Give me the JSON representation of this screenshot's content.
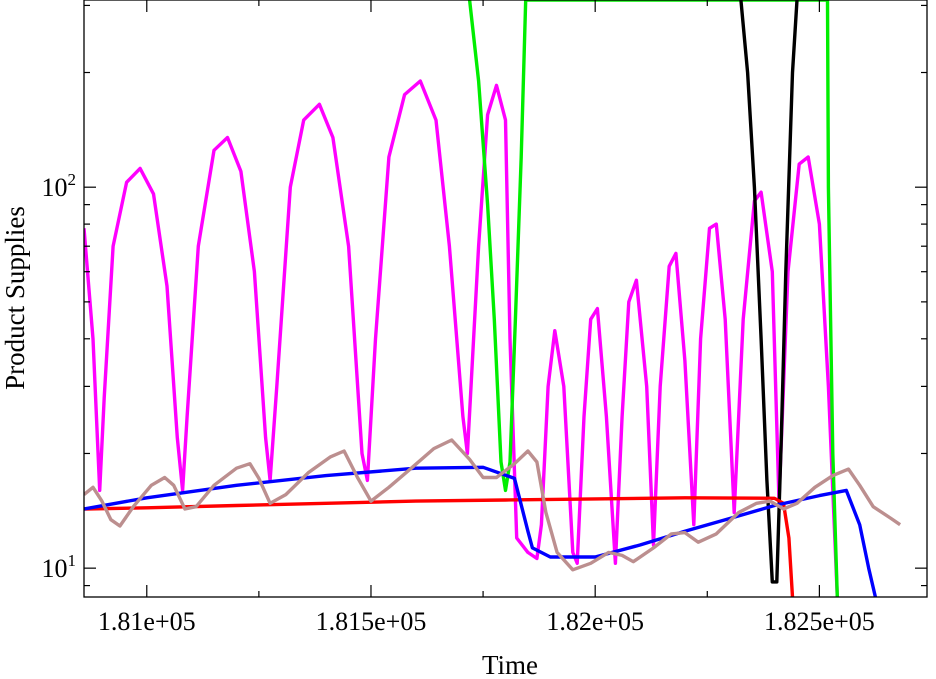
{
  "chart_data": {
    "type": "line",
    "xlabel": "Time",
    "ylabel": "Product Supplies",
    "xscale": "linear",
    "yscale": "log",
    "xlim": [
      180860,
      182740
    ],
    "ylim": [
      8.4,
      310
    ],
    "grid": false,
    "legend": "none",
    "x_ticks": [
      {
        "value": 181000,
        "label": "1.81e+05"
      },
      {
        "value": 181500,
        "label": "1.815e+05"
      },
      {
        "value": 182000,
        "label": "1.82e+05"
      },
      {
        "value": 182500,
        "label": "1.825e+05"
      }
    ],
    "y_ticks": [
      {
        "value": 10,
        "base": "10",
        "exp": "1"
      },
      {
        "value": 100,
        "base": "10",
        "exp": "2"
      }
    ],
    "series": [
      {
        "color": "#ff00ff",
        "points": [
          [
            180860,
            78
          ],
          [
            180880,
            40
          ],
          [
            180895,
            16
          ],
          [
            180905,
            28
          ],
          [
            180925,
            70
          ],
          [
            180955,
            103
          ],
          [
            180985,
            112
          ],
          [
            181015,
            96
          ],
          [
            181045,
            55
          ],
          [
            181068,
            22
          ],
          [
            181080,
            16
          ],
          [
            181090,
            25
          ],
          [
            181115,
            70
          ],
          [
            181150,
            125
          ],
          [
            181180,
            135
          ],
          [
            181210,
            110
          ],
          [
            181240,
            60
          ],
          [
            181265,
            22
          ],
          [
            181275,
            17
          ],
          [
            181290,
            30
          ],
          [
            181320,
            100
          ],
          [
            181350,
            150
          ],
          [
            181385,
            165
          ],
          [
            181415,
            135
          ],
          [
            181450,
            70
          ],
          [
            181480,
            20
          ],
          [
            181492,
            17
          ],
          [
            181510,
            40
          ],
          [
            181540,
            120
          ],
          [
            181575,
            175
          ],
          [
            181610,
            190
          ],
          [
            181645,
            150
          ],
          [
            181675,
            70
          ],
          [
            181705,
            25
          ],
          [
            181715,
            20
          ],
          [
            181740,
            70
          ],
          [
            181760,
            155
          ],
          [
            181780,
            185
          ],
          [
            181800,
            150
          ],
          [
            181810,
            40
          ],
          [
            181825,
            12
          ],
          [
            181850,
            11
          ],
          [
            181870,
            10.6
          ],
          [
            181880,
            13
          ],
          [
            181895,
            30
          ],
          [
            181910,
            42
          ],
          [
            181930,
            30
          ],
          [
            181950,
            11
          ],
          [
            181960,
            10.3
          ],
          [
            181975,
            25
          ],
          [
            181990,
            45
          ],
          [
            182005,
            48
          ],
          [
            182025,
            25
          ],
          [
            182045,
            10.3
          ],
          [
            182060,
            25
          ],
          [
            182075,
            50
          ],
          [
            182092,
            57
          ],
          [
            182115,
            30
          ],
          [
            182130,
            11.5
          ],
          [
            182145,
            30
          ],
          [
            182165,
            62
          ],
          [
            182180,
            67
          ],
          [
            182200,
            35
          ],
          [
            182220,
            13
          ],
          [
            182235,
            40
          ],
          [
            182255,
            78
          ],
          [
            182270,
            80
          ],
          [
            182290,
            45
          ],
          [
            182310,
            14
          ],
          [
            182330,
            45
          ],
          [
            182355,
            92
          ],
          [
            182370,
            97
          ],
          [
            182395,
            60
          ],
          [
            182410,
            15
          ],
          [
            182430,
            60
          ],
          [
            182455,
            115
          ],
          [
            182475,
            120
          ],
          [
            182500,
            80
          ],
          [
            182520,
            30
          ],
          [
            182540,
            8.4
          ]
        ]
      },
      {
        "color": "#00ee00",
        "points": [
          [
            181720,
            310
          ],
          [
            181740,
            190
          ],
          [
            181760,
            90
          ],
          [
            181775,
            45
          ],
          [
            181790,
            19
          ],
          [
            181800,
            16
          ],
          [
            181810,
            19
          ],
          [
            181822,
            45
          ],
          [
            181835,
            120
          ],
          [
            181845,
            310
          ],
          [
            182518,
            310
          ],
          [
            182520,
            100
          ],
          [
            182530,
            20
          ],
          [
            182540,
            8.4
          ]
        ]
      },
      {
        "color": "#000000",
        "points": [
          [
            182325,
            310
          ],
          [
            182340,
            200
          ],
          [
            182355,
            100
          ],
          [
            182370,
            40
          ],
          [
            182383,
            17
          ],
          [
            182395,
            9.2
          ],
          [
            182405,
            9.2
          ],
          [
            182415,
            22
          ],
          [
            182425,
            60
          ],
          [
            182440,
            200
          ],
          [
            182450,
            310
          ]
        ]
      },
      {
        "color": "#ff0000",
        "points": [
          [
            180860,
            14.3
          ],
          [
            181000,
            14.4
          ],
          [
            181200,
            14.6
          ],
          [
            181400,
            14.8
          ],
          [
            181600,
            15
          ],
          [
            181800,
            15.1
          ],
          [
            182000,
            15.2
          ],
          [
            182200,
            15.3
          ],
          [
            182400,
            15.25
          ],
          [
            182420,
            14.8
          ],
          [
            182432,
            12
          ],
          [
            182440,
            8.4
          ]
        ]
      },
      {
        "color": "#0000ff",
        "points": [
          [
            180860,
            14.3
          ],
          [
            181000,
            15.3
          ],
          [
            181200,
            16.5
          ],
          [
            181400,
            17.5
          ],
          [
            181600,
            18.3
          ],
          [
            181750,
            18.4
          ],
          [
            181820,
            17.2
          ],
          [
            181850,
            12.5
          ],
          [
            181860,
            11.3
          ],
          [
            181900,
            10.7
          ],
          [
            182000,
            10.7
          ],
          [
            182100,
            11.5
          ],
          [
            182200,
            12.5
          ],
          [
            182300,
            13.5
          ],
          [
            182400,
            14.6
          ],
          [
            182500,
            15.5
          ],
          [
            182560,
            16
          ],
          [
            182590,
            13
          ],
          [
            182610,
            10
          ],
          [
            182625,
            8.4
          ]
        ]
      },
      {
        "color": "#bc8f8f",
        "points": [
          [
            180860,
            15.6
          ],
          [
            180880,
            16.3
          ],
          [
            180900,
            15
          ],
          [
            180920,
            13.4
          ],
          [
            180940,
            12.9
          ],
          [
            180970,
            14.5
          ],
          [
            181010,
            16.5
          ],
          [
            181040,
            17.3
          ],
          [
            181060,
            16.5
          ],
          [
            181085,
            14.3
          ],
          [
            181110,
            14.5
          ],
          [
            181150,
            16.5
          ],
          [
            181200,
            18.3
          ],
          [
            181230,
            18.8
          ],
          [
            181250,
            17.2
          ],
          [
            181275,
            14.8
          ],
          [
            181310,
            15.6
          ],
          [
            181360,
            17.8
          ],
          [
            181410,
            19.6
          ],
          [
            181440,
            20.3
          ],
          [
            181470,
            17.3
          ],
          [
            181500,
            15
          ],
          [
            181540,
            16.3
          ],
          [
            181590,
            18.3
          ],
          [
            181640,
            20.6
          ],
          [
            181680,
            21.7
          ],
          [
            181720,
            19.3
          ],
          [
            181750,
            17.3
          ],
          [
            181780,
            17.3
          ],
          [
            181820,
            18.8
          ],
          [
            181850,
            20.3
          ],
          [
            181870,
            19
          ],
          [
            181890,
            14
          ],
          [
            181915,
            11
          ],
          [
            181950,
            9.9
          ],
          [
            181990,
            10.3
          ],
          [
            182030,
            11
          ],
          [
            182060,
            10.8
          ],
          [
            182085,
            10.4
          ],
          [
            182130,
            11.3
          ],
          [
            182170,
            12.3
          ],
          [
            182200,
            12.4
          ],
          [
            182230,
            11.7
          ],
          [
            182270,
            12.3
          ],
          [
            182320,
            14
          ],
          [
            182360,
            14.8
          ],
          [
            182390,
            15
          ],
          [
            182420,
            14.3
          ],
          [
            182450,
            14.8
          ],
          [
            182490,
            16.3
          ],
          [
            182530,
            17.5
          ],
          [
            182565,
            18.2
          ],
          [
            182590,
            16.5
          ],
          [
            182620,
            14.5
          ],
          [
            182660,
            13.5
          ],
          [
            182680,
            13
          ]
        ]
      }
    ]
  }
}
